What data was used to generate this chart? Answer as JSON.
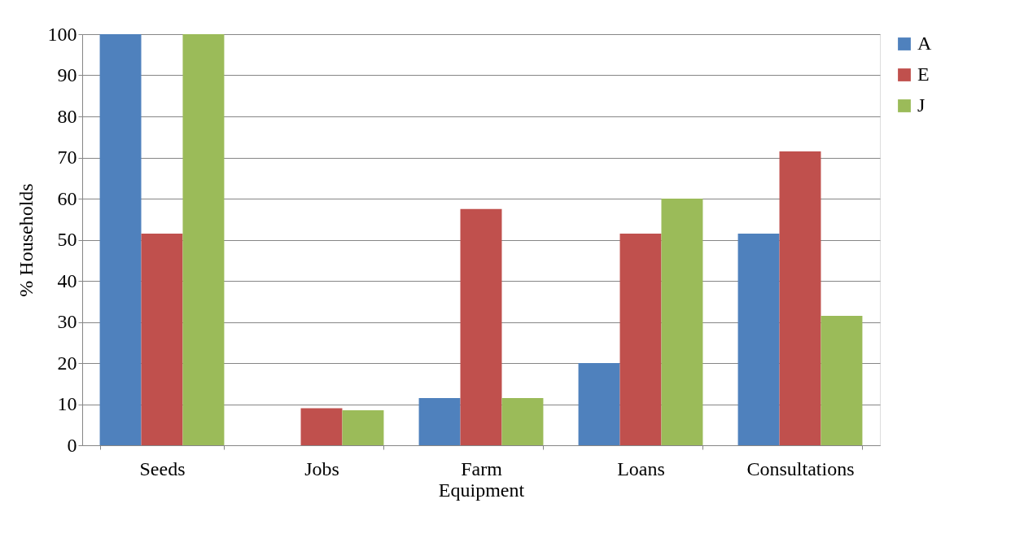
{
  "chart_data": {
    "type": "bar",
    "ylabel": "% Households",
    "categories": [
      "Seeds",
      "Jobs",
      "Farm Equipment",
      "Loans",
      "Consultations"
    ],
    "series": [
      {
        "name": "A",
        "color": "#4f81bd",
        "values": [
          100,
          0,
          11.5,
          20,
          51.5
        ]
      },
      {
        "name": "E",
        "color": "#c0504d",
        "values": [
          51.5,
          9,
          57.5,
          51.5,
          71.5
        ]
      },
      {
        "name": "J",
        "color": "#9bbb59",
        "values": [
          100,
          8.5,
          11.5,
          60,
          31.5
        ]
      }
    ],
    "ylim": [
      0,
      100
    ],
    "yticks": [
      0,
      10,
      20,
      30,
      40,
      50,
      60,
      70,
      80,
      90,
      100
    ],
    "grid": "y",
    "legend": "right"
  }
}
